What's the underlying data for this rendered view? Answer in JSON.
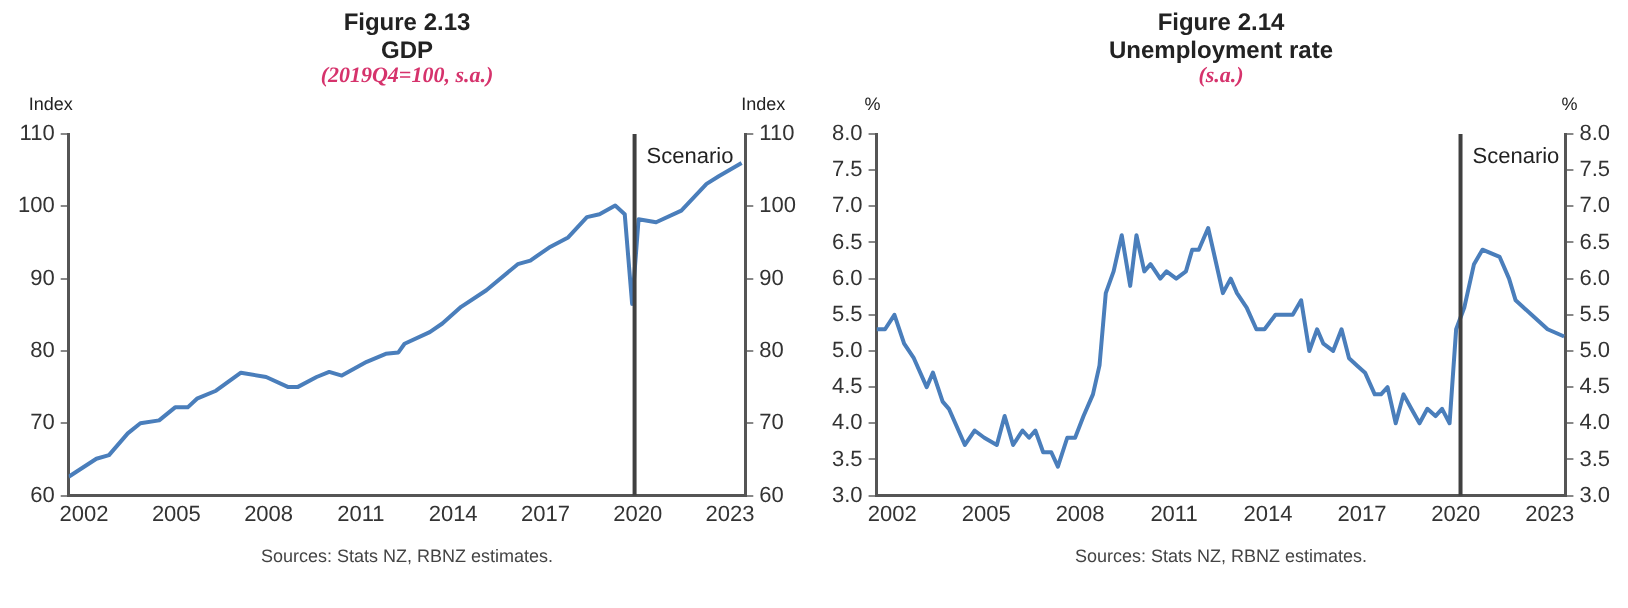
{
  "chart_data": [
    {
      "type": "line",
      "title": "Figure 2.13",
      "subtitle": "GDP",
      "annotations": [
        "(2019Q4=100, s.a.)",
        "Sources: Stats NZ, RBNZ estimates."
      ],
      "ylabel": "Index",
      "y2label": "Index",
      "xlim": [
        2002,
        2024
      ],
      "xticks": [
        {
          "value": 2002.5,
          "label": "2002"
        },
        {
          "value": 2005.5,
          "label": "2005"
        },
        {
          "value": 2008.5,
          "label": "2008"
        },
        {
          "value": 2011.5,
          "label": "2011"
        },
        {
          "value": 2014.5,
          "label": "2014"
        },
        {
          "value": 2017.5,
          "label": "2017"
        },
        {
          "value": 2020.5,
          "label": "2020"
        },
        {
          "value": 2023.5,
          "label": "2023"
        }
      ],
      "ylim": [
        60,
        110
      ],
      "yticks": [
        60,
        70,
        80,
        90,
        100,
        110
      ],
      "y2lim": [
        60,
        110
      ],
      "y2ticks": [
        60,
        70,
        80,
        90,
        100,
        110
      ],
      "grid": false,
      "legend": false,
      "marker": "none",
      "line_style": "solid",
      "ref_lines": [
        {
          "axis": "x",
          "value": 2020.4,
          "label": "Scenario",
          "color": "#404040"
        }
      ],
      "series": [
        {
          "color": "#4a7ebb",
          "x": [
            2002,
            2002.9,
            2003.31,
            2003.92,
            2004.33,
            2004.94,
            2005.46,
            2005.87,
            2006.17,
            2006.79,
            2007.6,
            2008.42,
            2009.14,
            2009.44,
            2010.06,
            2010.47,
            2010.88,
            2011.69,
            2012.31,
            2012.72,
            2012.92,
            2013.74,
            2014.15,
            2014.76,
            2015.58,
            2016.6,
            2017.01,
            2017.62,
            2018.24,
            2018.85,
            2019.26,
            2019.77,
            2020.08,
            2020.32,
            2020.53,
            2021.1,
            2021.92,
            2022.74,
            2023.15,
            2023.88
          ],
          "values": [
            62.6,
            65.1,
            65.6,
            68.6,
            70,
            70.4,
            72.2,
            72.2,
            73.4,
            74.5,
            77,
            76.4,
            75,
            75,
            76.4,
            77.1,
            76.6,
            78.5,
            79.6,
            79.8,
            81,
            82.6,
            83.8,
            86.1,
            88.4,
            92,
            92.5,
            94.3,
            95.7,
            98.5,
            98.9,
            100.1,
            98.9,
            86.5,
            98.2,
            97.8,
            99.4,
            103.1,
            104.2,
            106
          ]
        }
      ]
    },
    {
      "type": "line",
      "title": "Figure 2.14",
      "subtitle": "Unemployment rate",
      "annotations": [
        "(s.a.)",
        "Sources: Stats NZ, RBNZ estimates."
      ],
      "ylabel": "%",
      "y2label": "%",
      "xlim": [
        2002,
        2024
      ],
      "xticks": [
        {
          "value": 2002.5,
          "label": "2002"
        },
        {
          "value": 2005.5,
          "label": "2005"
        },
        {
          "value": 2008.5,
          "label": "2008"
        },
        {
          "value": 2011.5,
          "label": "2011"
        },
        {
          "value": 2014.5,
          "label": "2014"
        },
        {
          "value": 2017.5,
          "label": "2017"
        },
        {
          "value": 2020.5,
          "label": "2020"
        },
        {
          "value": 2023.5,
          "label": "2023"
        }
      ],
      "ylim": [
        3,
        8
      ],
      "yticks": [
        {
          "value": 3,
          "label": "3.0"
        },
        3.5,
        {
          "value": 4,
          "label": "4.0"
        },
        4.5,
        {
          "value": 5,
          "label": "5.0"
        },
        5.5,
        {
          "value": 6,
          "label": "6.0"
        },
        6.5,
        {
          "value": 7,
          "label": "7.0"
        },
        7.5,
        {
          "value": 8,
          "label": "8.0"
        }
      ],
      "y2lim": [
        3,
        8
      ],
      "y2ticks": [
        {
          "value": 3,
          "label": "3.0"
        },
        3.5,
        {
          "value": 4,
          "label": "4.0"
        },
        4.5,
        {
          "value": 5,
          "label": "5.0"
        },
        5.5,
        {
          "value": 6,
          "label": "6.0"
        },
        6.5,
        {
          "value": 7,
          "label": "7.0"
        },
        7.5,
        {
          "value": 8,
          "label": "8.0"
        }
      ],
      "grid": false,
      "legend": false,
      "marker": "none",
      "line_style": "solid",
      "ref_lines": [
        {
          "axis": "x",
          "value": 2020.65,
          "label": "Scenario",
          "color": "#404040"
        }
      ],
      "series": [
        {
          "color": "#4a7ebb",
          "x": [
            2002,
            2002.27,
            2002.57,
            2002.88,
            2003.19,
            2003.6,
            2003.8,
            2004.11,
            2004.31,
            2004.82,
            2005.13,
            2005.44,
            2005.84,
            2006.09,
            2006.36,
            2006.66,
            2006.87,
            2007.07,
            2007.32,
            2007.58,
            2007.79,
            2008.09,
            2008.34,
            2008.61,
            2008.91,
            2009.12,
            2009.32,
            2009.57,
            2009.83,
            2010.1,
            2010.3,
            2010.55,
            2010.75,
            2011.06,
            2011.26,
            2011.57,
            2011.88,
            2012.08,
            2012.29,
            2012.59,
            2012.8,
            2013.06,
            2013.31,
            2013.51,
            2013.82,
            2014.13,
            2014.39,
            2014.74,
            2015.05,
            2015.29,
            2015.56,
            2015.82,
            2016.07,
            2016.27,
            2016.58,
            2016.85,
            2017.09,
            2017.34,
            2017.6,
            2017.91,
            2018.11,
            2018.32,
            2018.58,
            2018.83,
            2019.08,
            2019.34,
            2019.59,
            2019.85,
            2020.06,
            2020.3,
            2020.51,
            2020.77,
            2021.08,
            2021.35,
            2021.9,
            2022.2,
            2022.41,
            2022.92,
            2023.43,
            2023.96
          ],
          "values": [
            5.3,
            5.3,
            5.5,
            5.1,
            4.9,
            4.5,
            4.7,
            4.3,
            4.2,
            3.7,
            3.9,
            3.8,
            3.7,
            4.1,
            3.7,
            3.9,
            3.8,
            3.9,
            3.6,
            3.6,
            3.4,
            3.8,
            3.8,
            4.1,
            4.4,
            4.8,
            5.8,
            6.1,
            6.6,
            5.9,
            6.6,
            6.1,
            6.2,
            6.0,
            6.1,
            6.0,
            6.1,
            6.4,
            6.4,
            6.7,
            6.3,
            5.8,
            6.0,
            5.8,
            5.6,
            5.3,
            5.3,
            5.5,
            5.5,
            5.5,
            5.7,
            5.0,
            5.3,
            5.1,
            5.0,
            5.3,
            4.9,
            4.8,
            4.7,
            4.4,
            4.4,
            4.5,
            4.0,
            4.4,
            4.2,
            4.0,
            4.2,
            4.1,
            4.2,
            4.0,
            5.3,
            5.6,
            6.2,
            6.4,
            6.3,
            6.0,
            5.7,
            5.5,
            5.3,
            5.2
          ]
        }
      ]
    }
  ]
}
